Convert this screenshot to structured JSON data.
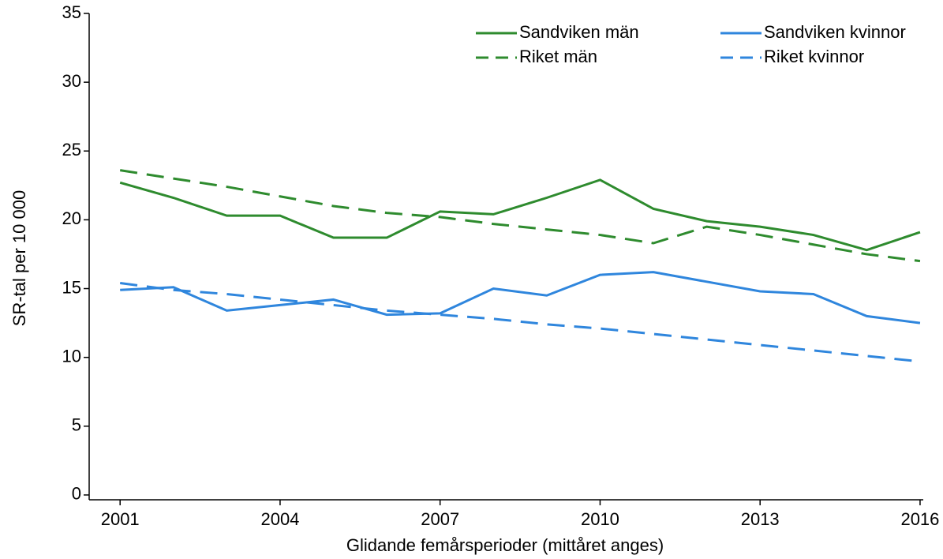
{
  "chart_data": {
    "type": "line",
    "xlabel": "Glidande femårsperioder (mittåret anges)",
    "ylabel": "SR-tal per 10 000",
    "x": [
      2001,
      2002,
      2003,
      2004,
      2005,
      2006,
      2007,
      2008,
      2009,
      2010,
      2011,
      2012,
      2013,
      2014,
      2015,
      2016
    ],
    "xlim": [
      2000.42,
      2016.06
    ],
    "xticks": [
      2001,
      2004,
      2007,
      2010,
      2013,
      2016
    ],
    "ylim": [
      -0.35,
      35
    ],
    "yticks": [
      0,
      5,
      10,
      15,
      20,
      25,
      30,
      35
    ],
    "legend": "top-right",
    "series": [
      {
        "name": "Sandviken män",
        "color": "#2e8b2e",
        "dashed": false,
        "values": [
          22.7,
          21.6,
          20.3,
          20.3,
          18.7,
          18.7,
          20.6,
          20.4,
          21.6,
          22.9,
          20.8,
          19.9,
          19.5,
          18.9,
          17.8,
          19.1
        ]
      },
      {
        "name": "Sandviken kvinnor",
        "color": "#2f86dd",
        "dashed": false,
        "values": [
          14.9,
          15.1,
          13.4,
          13.8,
          14.2,
          13.1,
          13.2,
          15.0,
          14.5,
          16.0,
          16.2,
          15.5,
          14.8,
          14.6,
          13.0,
          12.5
        ]
      },
      {
        "name": "Riket män",
        "color": "#2e8b2e",
        "dashed": true,
        "values": [
          23.6,
          23.0,
          22.4,
          21.7,
          21.0,
          20.5,
          20.2,
          19.7,
          19.3,
          18.9,
          18.3,
          19.5,
          18.9,
          18.2,
          17.5,
          17.0
        ]
      },
      {
        "name": "Riket kvinnor",
        "color": "#2f86dd",
        "dashed": true,
        "values": [
          15.4,
          14.9,
          14.6,
          14.2,
          13.8,
          13.4,
          13.1,
          12.8,
          12.4,
          12.1,
          11.7,
          11.3,
          10.9,
          10.5,
          10.1,
          9.7
        ]
      }
    ]
  }
}
